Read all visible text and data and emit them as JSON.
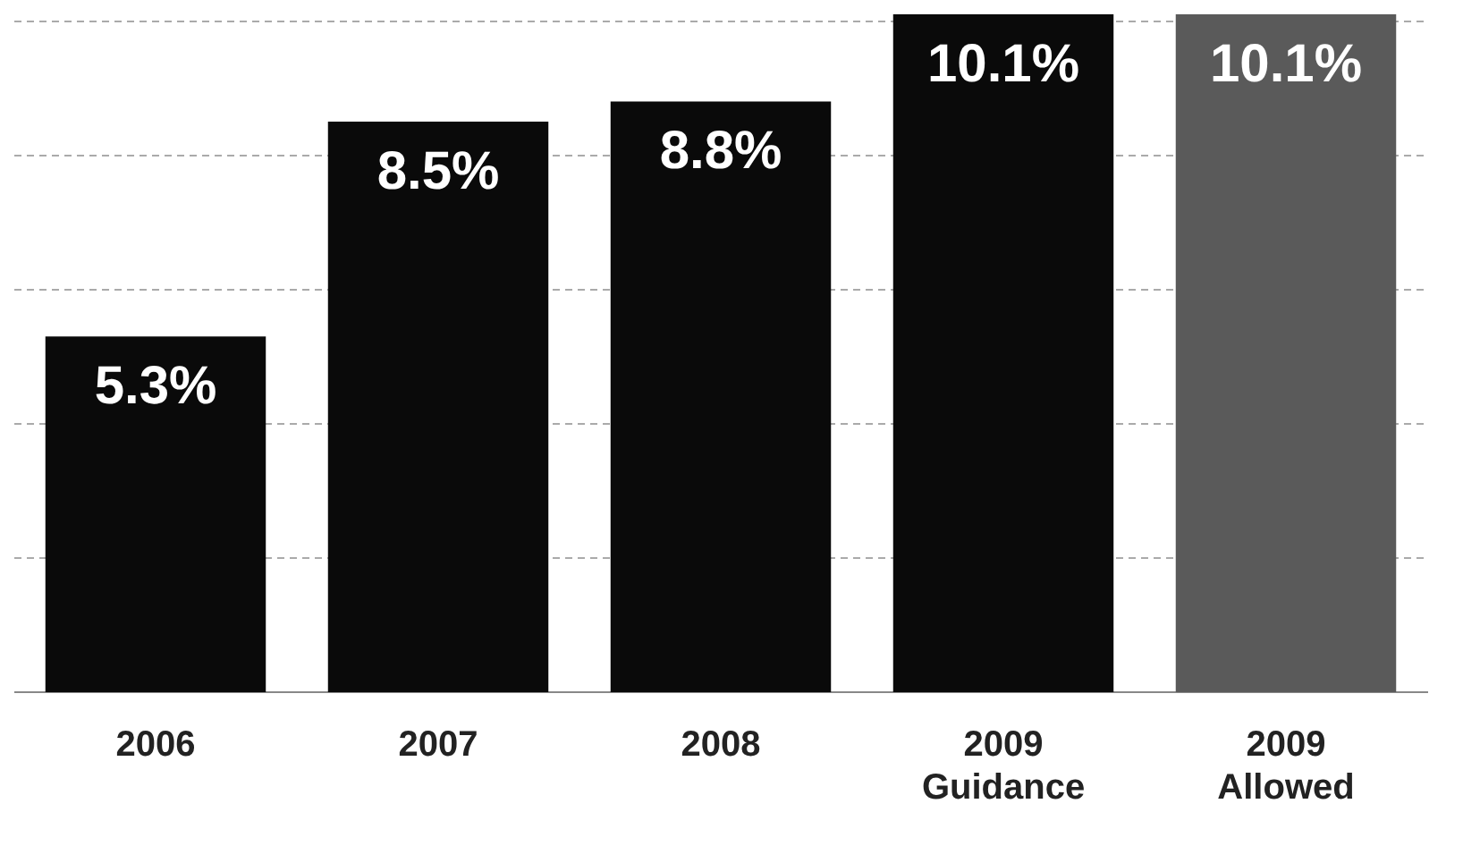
{
  "chart_data": {
    "type": "bar",
    "categories": [
      "2006",
      "2007",
      "2008",
      "2009 Guidance",
      "2009 Allowed"
    ],
    "values": [
      5.3,
      8.5,
      8.8,
      10.1,
      10.1
    ],
    "colors": [
      "#0a0a0a",
      "#0a0a0a",
      "#0a0a0a",
      "#0a0a0a",
      "#5a5a5a"
    ],
    "data_labels": true,
    "value_labels": [
      "5.3%",
      "8.5%",
      "8.8%",
      "10.1%",
      "10.1%"
    ],
    "ylim": [
      0,
      10.1
    ],
    "yticks": [
      {
        "value": 2,
        "label": null
      },
      {
        "value": 4,
        "label": null
      },
      {
        "value": 6,
        "label": null
      },
      {
        "value": 8,
        "label": null
      },
      {
        "value": 10,
        "label": null
      }
    ],
    "grid": "y",
    "tick_labels": "x",
    "legend": false
  }
}
